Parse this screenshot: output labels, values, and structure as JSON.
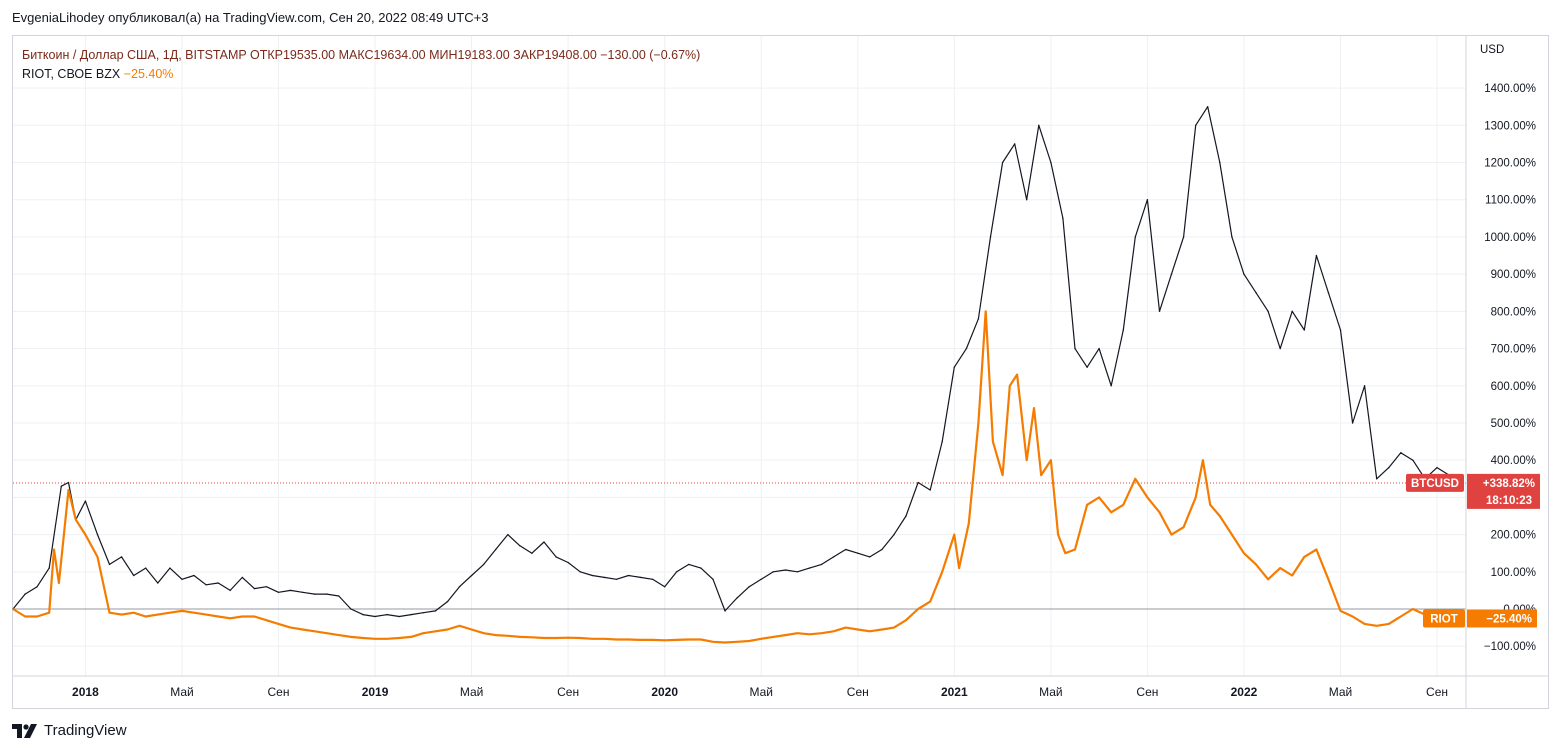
{
  "header": {
    "publisher_line": "EvgeniaLihodey опубликовал(а) на TradingView.com, Сен 20, 2022 08:49 UTC+3"
  },
  "legend": {
    "btc_line": "Биткоин / Доллар США, 1Д, BITSTAMP  ОТКР19535.00  МАКС19634.00  МИН19183.00  ЗАКР19408.00  −130.00 (−0.67%)",
    "riot_name": "RIOT, СВОЕ BZX",
    "riot_change": "−25.40%"
  },
  "footer": {
    "brand": "TradingView"
  },
  "colors": {
    "btc_line": "#131722",
    "riot_line": "#f57c00",
    "btc_badge": "#e0433f",
    "riot_badge": "#f57c00",
    "grid": "#eef0f3"
  },
  "chart_data": {
    "type": "line",
    "title": "Биткоин / Доллар США vs RIOT (percent change)",
    "xlabel": "",
    "ylabel": "USD",
    "y_unit": "%",
    "ylim": [
      -180,
      1540
    ],
    "y_ticks": [
      -100,
      0,
      100,
      200,
      300,
      400,
      500,
      600,
      700,
      800,
      900,
      1000,
      1100,
      1200,
      1300,
      1400
    ],
    "y_tick_labels": [
      "−100.00%",
      "0.00%",
      "100.00%",
      "200.00%",
      "300.00%",
      "400.00%",
      "500.00%",
      "600.00%",
      "700.00%",
      "800.00%",
      "900.00%",
      "1000.00%",
      "1100.00%",
      "1200.00%",
      "1300.00%",
      "1400.00%"
    ],
    "x_unit": "months since Oct 2017",
    "xlim": [
      0,
      60.2
    ],
    "x_ticks": [
      {
        "t": 3,
        "label": "2018",
        "bold": true
      },
      {
        "t": 7,
        "label": "Май",
        "bold": false
      },
      {
        "t": 11,
        "label": "Сен",
        "bold": false
      },
      {
        "t": 15,
        "label": "2019",
        "bold": true
      },
      {
        "t": 19,
        "label": "Май",
        "bold": false
      },
      {
        "t": 23,
        "label": "Сен",
        "bold": false
      },
      {
        "t": 27,
        "label": "2020",
        "bold": true
      },
      {
        "t": 31,
        "label": "Май",
        "bold": false
      },
      {
        "t": 35,
        "label": "Сен",
        "bold": false
      },
      {
        "t": 39,
        "label": "2021",
        "bold": true
      },
      {
        "t": 43,
        "label": "Май",
        "bold": false
      },
      {
        "t": 47,
        "label": "Сен",
        "bold": false
      },
      {
        "t": 51,
        "label": "2022",
        "bold": true
      },
      {
        "t": 55,
        "label": "Май",
        "bold": false
      },
      {
        "t": 59,
        "label": "Сен",
        "bold": false
      }
    ],
    "series": [
      {
        "name": "BTCUSD",
        "last_value_label": "+338.82%",
        "countdown": "18:10:23",
        "points": [
          [
            0,
            0
          ],
          [
            0.5,
            40
          ],
          [
            1,
            60
          ],
          [
            1.5,
            110
          ],
          [
            2,
            330
          ],
          [
            2.3,
            340
          ],
          [
            2.6,
            240
          ],
          [
            3,
            290
          ],
          [
            3.5,
            200
          ],
          [
            4,
            120
          ],
          [
            4.5,
            140
          ],
          [
            5,
            90
          ],
          [
            5.5,
            110
          ],
          [
            6,
            70
          ],
          [
            6.5,
            110
          ],
          [
            7,
            80
          ],
          [
            7.5,
            90
          ],
          [
            8,
            65
          ],
          [
            8.5,
            70
          ],
          [
            9,
            50
          ],
          [
            9.5,
            85
          ],
          [
            10,
            55
          ],
          [
            10.5,
            60
          ],
          [
            11,
            45
          ],
          [
            11.5,
            50
          ],
          [
            12,
            45
          ],
          [
            12.5,
            40
          ],
          [
            13,
            40
          ],
          [
            13.5,
            35
          ],
          [
            14,
            0
          ],
          [
            14.5,
            -15
          ],
          [
            15,
            -20
          ],
          [
            15.5,
            -15
          ],
          [
            16,
            -20
          ],
          [
            16.5,
            -15
          ],
          [
            17,
            -10
          ],
          [
            17.5,
            -5
          ],
          [
            18,
            20
          ],
          [
            18.5,
            60
          ],
          [
            19,
            90
          ],
          [
            19.5,
            120
          ],
          [
            20,
            160
          ],
          [
            20.5,
            200
          ],
          [
            21,
            170
          ],
          [
            21.5,
            150
          ],
          [
            22,
            180
          ],
          [
            22.5,
            140
          ],
          [
            23,
            125
          ],
          [
            23.5,
            100
          ],
          [
            24,
            90
          ],
          [
            24.5,
            85
          ],
          [
            25,
            80
          ],
          [
            25.5,
            90
          ],
          [
            26,
            85
          ],
          [
            26.5,
            80
          ],
          [
            27,
            60
          ],
          [
            27.5,
            100
          ],
          [
            28,
            120
          ],
          [
            28.5,
            110
          ],
          [
            29,
            80
          ],
          [
            29.5,
            -5
          ],
          [
            30,
            30
          ],
          [
            30.5,
            60
          ],
          [
            31,
            80
          ],
          [
            31.5,
            100
          ],
          [
            32,
            105
          ],
          [
            32.5,
            100
          ],
          [
            33,
            110
          ],
          [
            33.5,
            120
          ],
          [
            34,
            140
          ],
          [
            34.5,
            160
          ],
          [
            35,
            150
          ],
          [
            35.5,
            140
          ],
          [
            36,
            160
          ],
          [
            36.5,
            200
          ],
          [
            37,
            250
          ],
          [
            37.5,
            340
          ],
          [
            38,
            320
          ],
          [
            38.5,
            450
          ],
          [
            39,
            650
          ],
          [
            39.5,
            700
          ],
          [
            40,
            780
          ],
          [
            40.5,
            1000
          ],
          [
            41,
            1200
          ],
          [
            41.5,
            1250
          ],
          [
            42,
            1100
          ],
          [
            42.5,
            1300
          ],
          [
            43,
            1200
          ],
          [
            43.5,
            1050
          ],
          [
            44,
            700
          ],
          [
            44.5,
            650
          ],
          [
            45,
            700
          ],
          [
            45.5,
            600
          ],
          [
            46,
            750
          ],
          [
            46.5,
            1000
          ],
          [
            47,
            1100
          ],
          [
            47.5,
            800
          ],
          [
            48,
            900
          ],
          [
            48.5,
            1000
          ],
          [
            49,
            1300
          ],
          [
            49.5,
            1350
          ],
          [
            50,
            1200
          ],
          [
            50.5,
            1000
          ],
          [
            51,
            900
          ],
          [
            51.5,
            850
          ],
          [
            52,
            800
          ],
          [
            52.5,
            700
          ],
          [
            53,
            800
          ],
          [
            53.5,
            750
          ],
          [
            54,
            950
          ],
          [
            54.5,
            850
          ],
          [
            55,
            750
          ],
          [
            55.5,
            500
          ],
          [
            56,
            600
          ],
          [
            56.5,
            350
          ],
          [
            57,
            380
          ],
          [
            57.5,
            420
          ],
          [
            58,
            400
          ],
          [
            58.5,
            350
          ],
          [
            59,
            380
          ],
          [
            59.5,
            360
          ],
          [
            60,
            339
          ]
        ]
      },
      {
        "name": "RIOT",
        "last_value_label": "−25.40%",
        "points": [
          [
            0,
            0
          ],
          [
            0.5,
            -20
          ],
          [
            1,
            -20
          ],
          [
            1.5,
            -10
          ],
          [
            1.7,
            160
          ],
          [
            1.9,
            70
          ],
          [
            2.3,
            320
          ],
          [
            2.6,
            240
          ],
          [
            3,
            200
          ],
          [
            3.5,
            140
          ],
          [
            4,
            -10
          ],
          [
            4.5,
            -15
          ],
          [
            5,
            -10
          ],
          [
            5.5,
            -20
          ],
          [
            6,
            -15
          ],
          [
            6.5,
            -10
          ],
          [
            7,
            -5
          ],
          [
            7.5,
            -10
          ],
          [
            8,
            -15
          ],
          [
            8.5,
            -20
          ],
          [
            9,
            -25
          ],
          [
            9.5,
            -20
          ],
          [
            10,
            -20
          ],
          [
            10.5,
            -30
          ],
          [
            11,
            -40
          ],
          [
            11.5,
            -50
          ],
          [
            12,
            -55
          ],
          [
            12.5,
            -60
          ],
          [
            13,
            -65
          ],
          [
            13.5,
            -70
          ],
          [
            14,
            -75
          ],
          [
            14.5,
            -78
          ],
          [
            15,
            -80
          ],
          [
            15.5,
            -80
          ],
          [
            16,
            -78
          ],
          [
            16.5,
            -75
          ],
          [
            17,
            -65
          ],
          [
            17.5,
            -60
          ],
          [
            18,
            -55
          ],
          [
            18.5,
            -45
          ],
          [
            19,
            -55
          ],
          [
            19.5,
            -65
          ],
          [
            20,
            -70
          ],
          [
            20.5,
            -72
          ],
          [
            21,
            -75
          ],
          [
            21.5,
            -76
          ],
          [
            22,
            -78
          ],
          [
            22.5,
            -78
          ],
          [
            23,
            -77
          ],
          [
            23.5,
            -78
          ],
          [
            24,
            -80
          ],
          [
            24.5,
            -80
          ],
          [
            25,
            -82
          ],
          [
            25.5,
            -82
          ],
          [
            26,
            -83
          ],
          [
            26.5,
            -83
          ],
          [
            27,
            -84
          ],
          [
            27.5,
            -83
          ],
          [
            28,
            -82
          ],
          [
            28.5,
            -82
          ],
          [
            29,
            -88
          ],
          [
            29.5,
            -90
          ],
          [
            30,
            -88
          ],
          [
            30.5,
            -86
          ],
          [
            31,
            -80
          ],
          [
            31.5,
            -75
          ],
          [
            32,
            -70
          ],
          [
            32.5,
            -65
          ],
          [
            33,
            -68
          ],
          [
            33.5,
            -65
          ],
          [
            34,
            -60
          ],
          [
            34.5,
            -50
          ],
          [
            35,
            -55
          ],
          [
            35.5,
            -60
          ],
          [
            36,
            -55
          ],
          [
            36.5,
            -50
          ],
          [
            37,
            -30
          ],
          [
            37.5,
            0
          ],
          [
            38,
            20
          ],
          [
            38.5,
            100
          ],
          [
            39,
            200
          ],
          [
            39.2,
            110
          ],
          [
            39.6,
            230
          ],
          [
            40,
            500
          ],
          [
            40.3,
            800
          ],
          [
            40.6,
            450
          ],
          [
            41,
            360
          ],
          [
            41.3,
            600
          ],
          [
            41.6,
            630
          ],
          [
            42,
            400
          ],
          [
            42.3,
            540
          ],
          [
            42.6,
            360
          ],
          [
            43,
            400
          ],
          [
            43.3,
            200
          ],
          [
            43.6,
            150
          ],
          [
            44,
            160
          ],
          [
            44.5,
            280
          ],
          [
            45,
            300
          ],
          [
            45.5,
            260
          ],
          [
            46,
            280
          ],
          [
            46.5,
            350
          ],
          [
            47,
            300
          ],
          [
            47.5,
            260
          ],
          [
            48,
            200
          ],
          [
            48.5,
            220
          ],
          [
            49,
            300
          ],
          [
            49.3,
            400
          ],
          [
            49.6,
            280
          ],
          [
            50,
            250
          ],
          [
            50.5,
            200
          ],
          [
            51,
            150
          ],
          [
            51.5,
            120
          ],
          [
            52,
            80
          ],
          [
            52.5,
            110
          ],
          [
            53,
            90
          ],
          [
            53.5,
            140
          ],
          [
            54,
            160
          ],
          [
            54.5,
            80
          ],
          [
            55,
            -5
          ],
          [
            55.5,
            -20
          ],
          [
            56,
            -40
          ],
          [
            56.5,
            -45
          ],
          [
            57,
            -40
          ],
          [
            57.5,
            -20
          ],
          [
            58,
            0
          ],
          [
            58.5,
            -15
          ],
          [
            59,
            -25
          ],
          [
            59.5,
            -20
          ],
          [
            60,
            -25.4
          ]
        ]
      }
    ],
    "reference_lines": [
      {
        "name": "zero-line",
        "y": 0
      },
      {
        "name": "btc-last-price-line",
        "y": 338.82
      }
    ]
  }
}
